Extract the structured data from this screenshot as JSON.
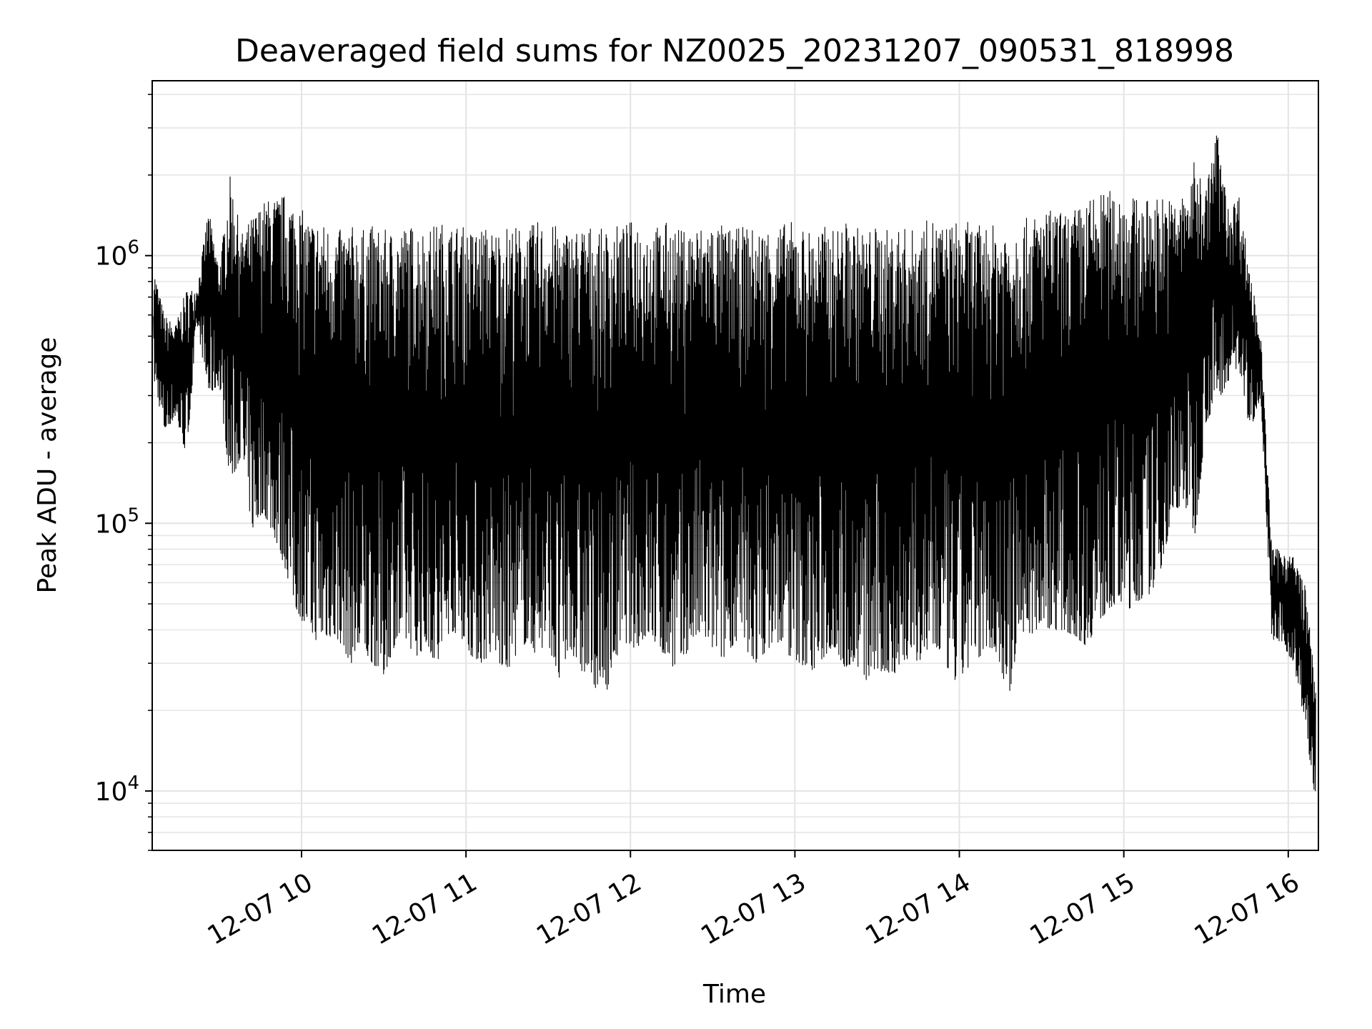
{
  "chart_data": {
    "type": "line",
    "title": "Deaveraged field sums for NZ0025_20231207_090531_818998",
    "xlabel": "Time",
    "ylabel": "Peak ADU - average",
    "yscale": "log",
    "xlim": [
      "2023-12-07 09:05:31",
      "2023-12-07 16:11:00"
    ],
    "ylim": [
      6000,
      4500000
    ],
    "grid": true,
    "line_color": "#000000",
    "x_ticks": [
      {
        "label": "12-07 10",
        "value": "2023-12-07 10:00"
      },
      {
        "label": "12-07 11",
        "value": "2023-12-07 11:00"
      },
      {
        "label": "12-07 12",
        "value": "2023-12-07 12:00"
      },
      {
        "label": "12-07 13",
        "value": "2023-12-07 13:00"
      },
      {
        "label": "12-07 14",
        "value": "2023-12-07 14:00"
      },
      {
        "label": "12-07 15",
        "value": "2023-12-07 15:00"
      },
      {
        "label": "12-07 16",
        "value": "2023-12-07 16:00"
      }
    ],
    "y_ticks": [
      {
        "base": "10",
        "exp": "4",
        "value": 10000
      },
      {
        "base": "10",
        "exp": "5",
        "value": 100000
      },
      {
        "base": "10",
        "exp": "6",
        "value": 1000000
      }
    ],
    "series": [
      {
        "x": [
          "2023-12-07 09:06",
          "2023-12-07 09:10",
          "2023-12-07 09:14",
          "2023-12-07 09:18",
          "2023-12-07 09:22",
          "2023-12-07 09:26",
          "2023-12-07 09:30",
          "2023-12-07 09:34",
          "2023-12-07 09:38",
          "2023-12-07 09:42",
          "2023-12-07 09:46",
          "2023-12-07 09:50",
          "2023-12-07 09:54",
          "2023-12-07 09:58",
          "2023-12-07 10:02",
          "2023-12-07 10:06",
          "2023-12-07 10:10",
          "2023-12-07 10:14",
          "2023-12-07 10:18",
          "2023-12-07 10:22",
          "2023-12-07 10:26",
          "2023-12-07 10:30",
          "2023-12-07 10:34",
          "2023-12-07 10:38",
          "2023-12-07 10:42",
          "2023-12-07 10:46",
          "2023-12-07 10:50",
          "2023-12-07 10:54",
          "2023-12-07 10:58",
          "2023-12-07 11:02",
          "2023-12-07 11:06",
          "2023-12-07 11:10",
          "2023-12-07 11:14",
          "2023-12-07 11:18",
          "2023-12-07 11:22",
          "2023-12-07 11:26",
          "2023-12-07 11:30",
          "2023-12-07 11:34",
          "2023-12-07 11:38",
          "2023-12-07 11:42",
          "2023-12-07 11:46",
          "2023-12-07 11:50",
          "2023-12-07 11:54",
          "2023-12-07 11:58",
          "2023-12-07 12:02",
          "2023-12-07 12:06",
          "2023-12-07 12:10",
          "2023-12-07 12:14",
          "2023-12-07 12:18",
          "2023-12-07 12:22",
          "2023-12-07 12:26",
          "2023-12-07 12:30",
          "2023-12-07 12:34",
          "2023-12-07 12:38",
          "2023-12-07 12:42",
          "2023-12-07 12:46",
          "2023-12-07 12:50",
          "2023-12-07 12:54",
          "2023-12-07 12:58",
          "2023-12-07 13:02",
          "2023-12-07 13:06",
          "2023-12-07 13:10",
          "2023-12-07 13:14",
          "2023-12-07 13:18",
          "2023-12-07 13:22",
          "2023-12-07 13:26",
          "2023-12-07 13:30",
          "2023-12-07 13:34",
          "2023-12-07 13:38",
          "2023-12-07 13:42",
          "2023-12-07 13:46",
          "2023-12-07 13:50",
          "2023-12-07 13:54",
          "2023-12-07 13:58",
          "2023-12-07 14:02",
          "2023-12-07 14:06",
          "2023-12-07 14:10",
          "2023-12-07 14:14",
          "2023-12-07 14:18",
          "2023-12-07 14:22",
          "2023-12-07 14:26",
          "2023-12-07 14:30",
          "2023-12-07 14:34",
          "2023-12-07 14:38",
          "2023-12-07 14:42",
          "2023-12-07 14:46",
          "2023-12-07 14:50",
          "2023-12-07 14:54",
          "2023-12-07 14:58",
          "2023-12-07 15:02",
          "2023-12-07 15:06",
          "2023-12-07 15:10",
          "2023-12-07 15:14",
          "2023-12-07 15:18",
          "2023-12-07 15:22",
          "2023-12-07 15:26",
          "2023-12-07 15:30",
          "2023-12-07 15:34",
          "2023-12-07 15:38",
          "2023-12-07 15:42",
          "2023-12-07 15:46",
          "2023-12-07 15:50",
          "2023-12-07 15:54",
          "2023-12-07 15:58",
          "2023-12-07 16:02",
          "2023-12-07 16:06",
          "2023-12-07 16:10"
        ],
        "low": [
          350000,
          220000,
          250000,
          180000,
          550000,
          300000,
          330000,
          140000,
          180000,
          95000,
          110000,
          90000,
          68000,
          48000,
          40000,
          36000,
          38000,
          36000,
          30000,
          33000,
          30000,
          27000,
          35000,
          36000,
          32000,
          35000,
          28000,
          40000,
          38000,
          32000,
          30000,
          34000,
          27000,
          32000,
          36000,
          32000,
          36000,
          25000,
          34000,
          28000,
          26000,
          21000,
          30000,
          36000,
          34000,
          38000,
          35000,
          30000,
          28000,
          36000,
          38000,
          34000,
          31000,
          36000,
          33000,
          30000,
          34000,
          36000,
          32000,
          30000,
          28000,
          31000,
          35000,
          29000,
          30000,
          26000,
          28000,
          27000,
          28000,
          32000,
          30000,
          34000,
          32000,
          25000,
          28000,
          30000,
          35000,
          32000,
          22000,
          40000,
          38000,
          42000,
          40000,
          40000,
          38000,
          35000,
          40000,
          48000,
          50000,
          48000,
          52000,
          55000,
          70000,
          110000,
          120000,
          90000,
          240000,
          280000,
          340000,
          380000,
          220000,
          300000,
          37000,
          35000,
          30000,
          18000,
          9000
        ],
        "high": [
          900000,
          600000,
          550000,
          750000,
          750000,
          1500000,
          900000,
          2000000,
          1200000,
          1400000,
          1600000,
          1650000,
          1700000,
          1600000,
          1400000,
          1350000,
          1300000,
          1250000,
          1300000,
          1250000,
          1300000,
          1250000,
          1250000,
          1300000,
          1300000,
          1250000,
          1350000,
          1300000,
          1300000,
          1250000,
          1300000,
          1250000,
          1300000,
          1300000,
          1250000,
          1350000,
          1300000,
          1300000,
          1250000,
          1300000,
          1300000,
          1250000,
          1300000,
          1300000,
          1400000,
          1300000,
          1300000,
          1350000,
          1250000,
          1300000,
          1300000,
          1350000,
          1300000,
          1250000,
          1300000,
          1250000,
          1300000,
          1300000,
          1350000,
          1300000,
          1250000,
          1300000,
          1250000,
          1350000,
          1300000,
          1250000,
          1300000,
          1250000,
          1300000,
          1250000,
          1300000,
          1400000,
          1300000,
          1350000,
          1350000,
          1300000,
          1300000,
          1300000,
          1350000,
          1350000,
          1400000,
          1450000,
          1500000,
          1450000,
          1500000,
          1600000,
          1700000,
          1750000,
          1800000,
          1700000,
          1600000,
          1650000,
          1700000,
          1600000,
          1700000,
          2300000,
          1800000,
          3000000,
          1500000,
          1700000,
          900000,
          500000,
          80000,
          80000,
          75000,
          60000,
          25000
        ]
      }
    ]
  }
}
